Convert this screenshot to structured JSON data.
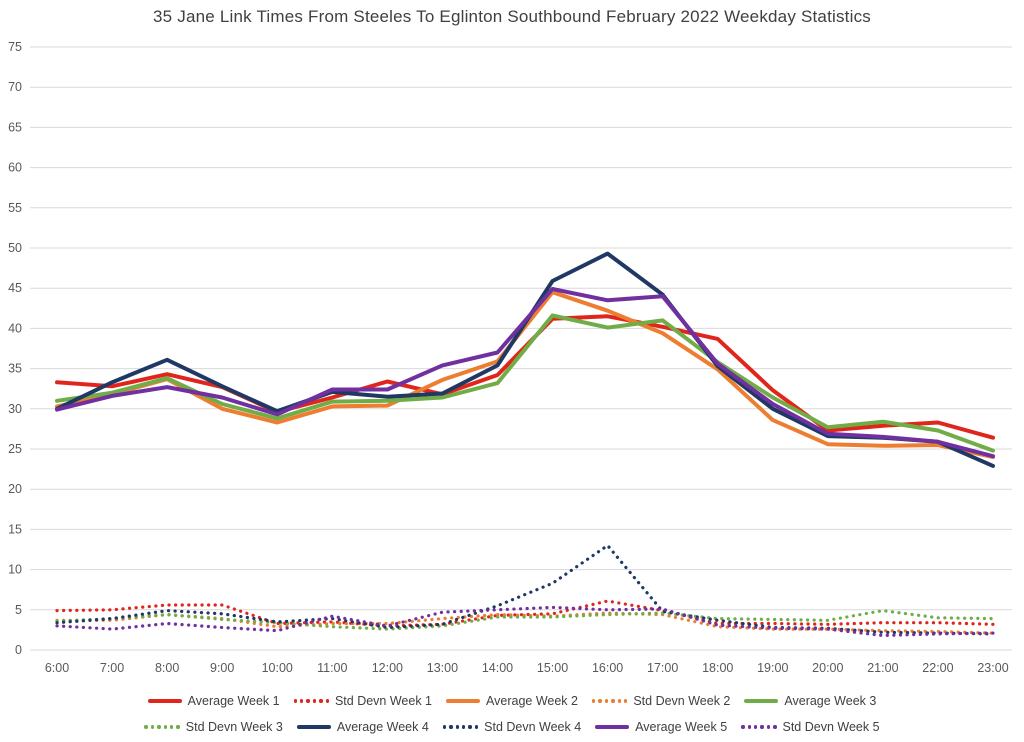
{
  "chart_data": {
    "type": "line",
    "title": "35 Jane Link Times From Steeles To Eglinton Southbound February 2022 Weekday Statistics",
    "xlabel": "",
    "ylabel": "",
    "ylim": [
      0,
      75
    ],
    "y_tick_step": 5,
    "y_ticks": [
      0,
      5,
      10,
      15,
      20,
      25,
      30,
      35,
      40,
      45,
      50,
      55,
      60,
      65,
      70,
      75
    ],
    "grid": "horizontal",
    "legend_position": "bottom",
    "categories": [
      "6:00",
      "7:00",
      "8:00",
      "9:00",
      "10:00",
      "11:00",
      "12:00",
      "13:00",
      "14:00",
      "15:00",
      "16:00",
      "17:00",
      "18:00",
      "19:00",
      "20:00",
      "21:00",
      "22:00",
      "23:00"
    ],
    "series": [
      {
        "name": "Average Week 1",
        "color": "#e0261c",
        "style": "solid",
        "values": [
          33.3,
          32.8,
          34.3,
          32.7,
          29.6,
          31.4,
          33.4,
          31.8,
          34.2,
          41.2,
          41.5,
          40.2,
          38.7,
          32.3,
          27.3,
          27.9,
          28.3,
          26.4
        ]
      },
      {
        "name": "Std Devn Week 1",
        "color": "#e0261c",
        "style": "dotted",
        "values": [
          4.9,
          5.0,
          5.6,
          5.6,
          3.3,
          3.5,
          3.0,
          3.2,
          4.3,
          4.5,
          6.1,
          4.9,
          3.3,
          3.3,
          3.2,
          3.4,
          3.4,
          3.2
        ]
      },
      {
        "name": "Average Week 2",
        "color": "#ed7d31",
        "style": "solid",
        "values": [
          30.3,
          31.8,
          33.7,
          30.0,
          28.3,
          30.3,
          30.4,
          33.6,
          35.9,
          44.5,
          42.2,
          39.4,
          34.9,
          28.6,
          25.6,
          25.4,
          25.5,
          24.0
        ]
      },
      {
        "name": "Std Devn Week 2",
        "color": "#ed7d31",
        "style": "dotted",
        "values": [
          3.7,
          3.7,
          4.4,
          3.9,
          2.9,
          3.3,
          3.3,
          3.9,
          4.4,
          4.2,
          4.6,
          4.4,
          2.9,
          2.6,
          2.6,
          2.4,
          2.3,
          2.1
        ]
      },
      {
        "name": "Average Week 3",
        "color": "#70ad47",
        "style": "solid",
        "values": [
          31.0,
          32.0,
          33.8,
          30.6,
          28.8,
          30.9,
          31.0,
          31.4,
          33.2,
          41.6,
          40.1,
          41.0,
          35.8,
          31.4,
          27.7,
          28.4,
          27.3,
          24.8
        ]
      },
      {
        "name": "Std Devn Week 3",
        "color": "#70ad47",
        "style": "dotted",
        "values": [
          3.6,
          3.9,
          4.4,
          3.8,
          3.4,
          2.9,
          2.6,
          3.0,
          4.1,
          4.1,
          4.4,
          4.6,
          3.9,
          3.8,
          3.7,
          4.9,
          4.0,
          3.9
        ]
      },
      {
        "name": "Average Week 4",
        "color": "#1f3864",
        "style": "solid",
        "values": [
          30.0,
          33.3,
          36.1,
          32.8,
          29.7,
          32.1,
          31.5,
          31.9,
          35.4,
          45.9,
          49.3,
          44.2,
          35.3,
          30.0,
          26.6,
          26.4,
          25.9,
          22.9
        ]
      },
      {
        "name": "Std Devn Week 4",
        "color": "#1f3864",
        "style": "dotted",
        "values": [
          3.4,
          3.9,
          4.9,
          4.5,
          3.5,
          3.9,
          2.8,
          3.2,
          5.5,
          8.3,
          13.0,
          4.8,
          3.7,
          2.8,
          2.7,
          2.2,
          2.1,
          2.0
        ]
      },
      {
        "name": "Average Week 5",
        "color": "#7030a0",
        "style": "solid",
        "values": [
          29.9,
          31.6,
          32.7,
          31.4,
          29.3,
          32.4,
          32.4,
          35.4,
          37.0,
          44.9,
          43.5,
          44.0,
          35.6,
          30.6,
          26.9,
          26.5,
          25.9,
          24.1
        ]
      },
      {
        "name": "Std Devn Week 5",
        "color": "#7030a0",
        "style": "dotted",
        "values": [
          3.0,
          2.6,
          3.3,
          2.8,
          2.4,
          4.2,
          3.0,
          4.7,
          5.0,
          5.3,
          5.0,
          5.1,
          3.1,
          2.7,
          2.6,
          1.8,
          2.0,
          2.1
        ]
      }
    ],
    "legend_rows": [
      [
        0,
        1,
        2,
        3,
        4
      ],
      [
        5,
        6,
        7,
        8,
        9
      ]
    ]
  },
  "style_colors": {
    "title_text": "#404040",
    "axis_text": "#595959",
    "gridline": "#d9d9d9",
    "background": "#ffffff"
  }
}
